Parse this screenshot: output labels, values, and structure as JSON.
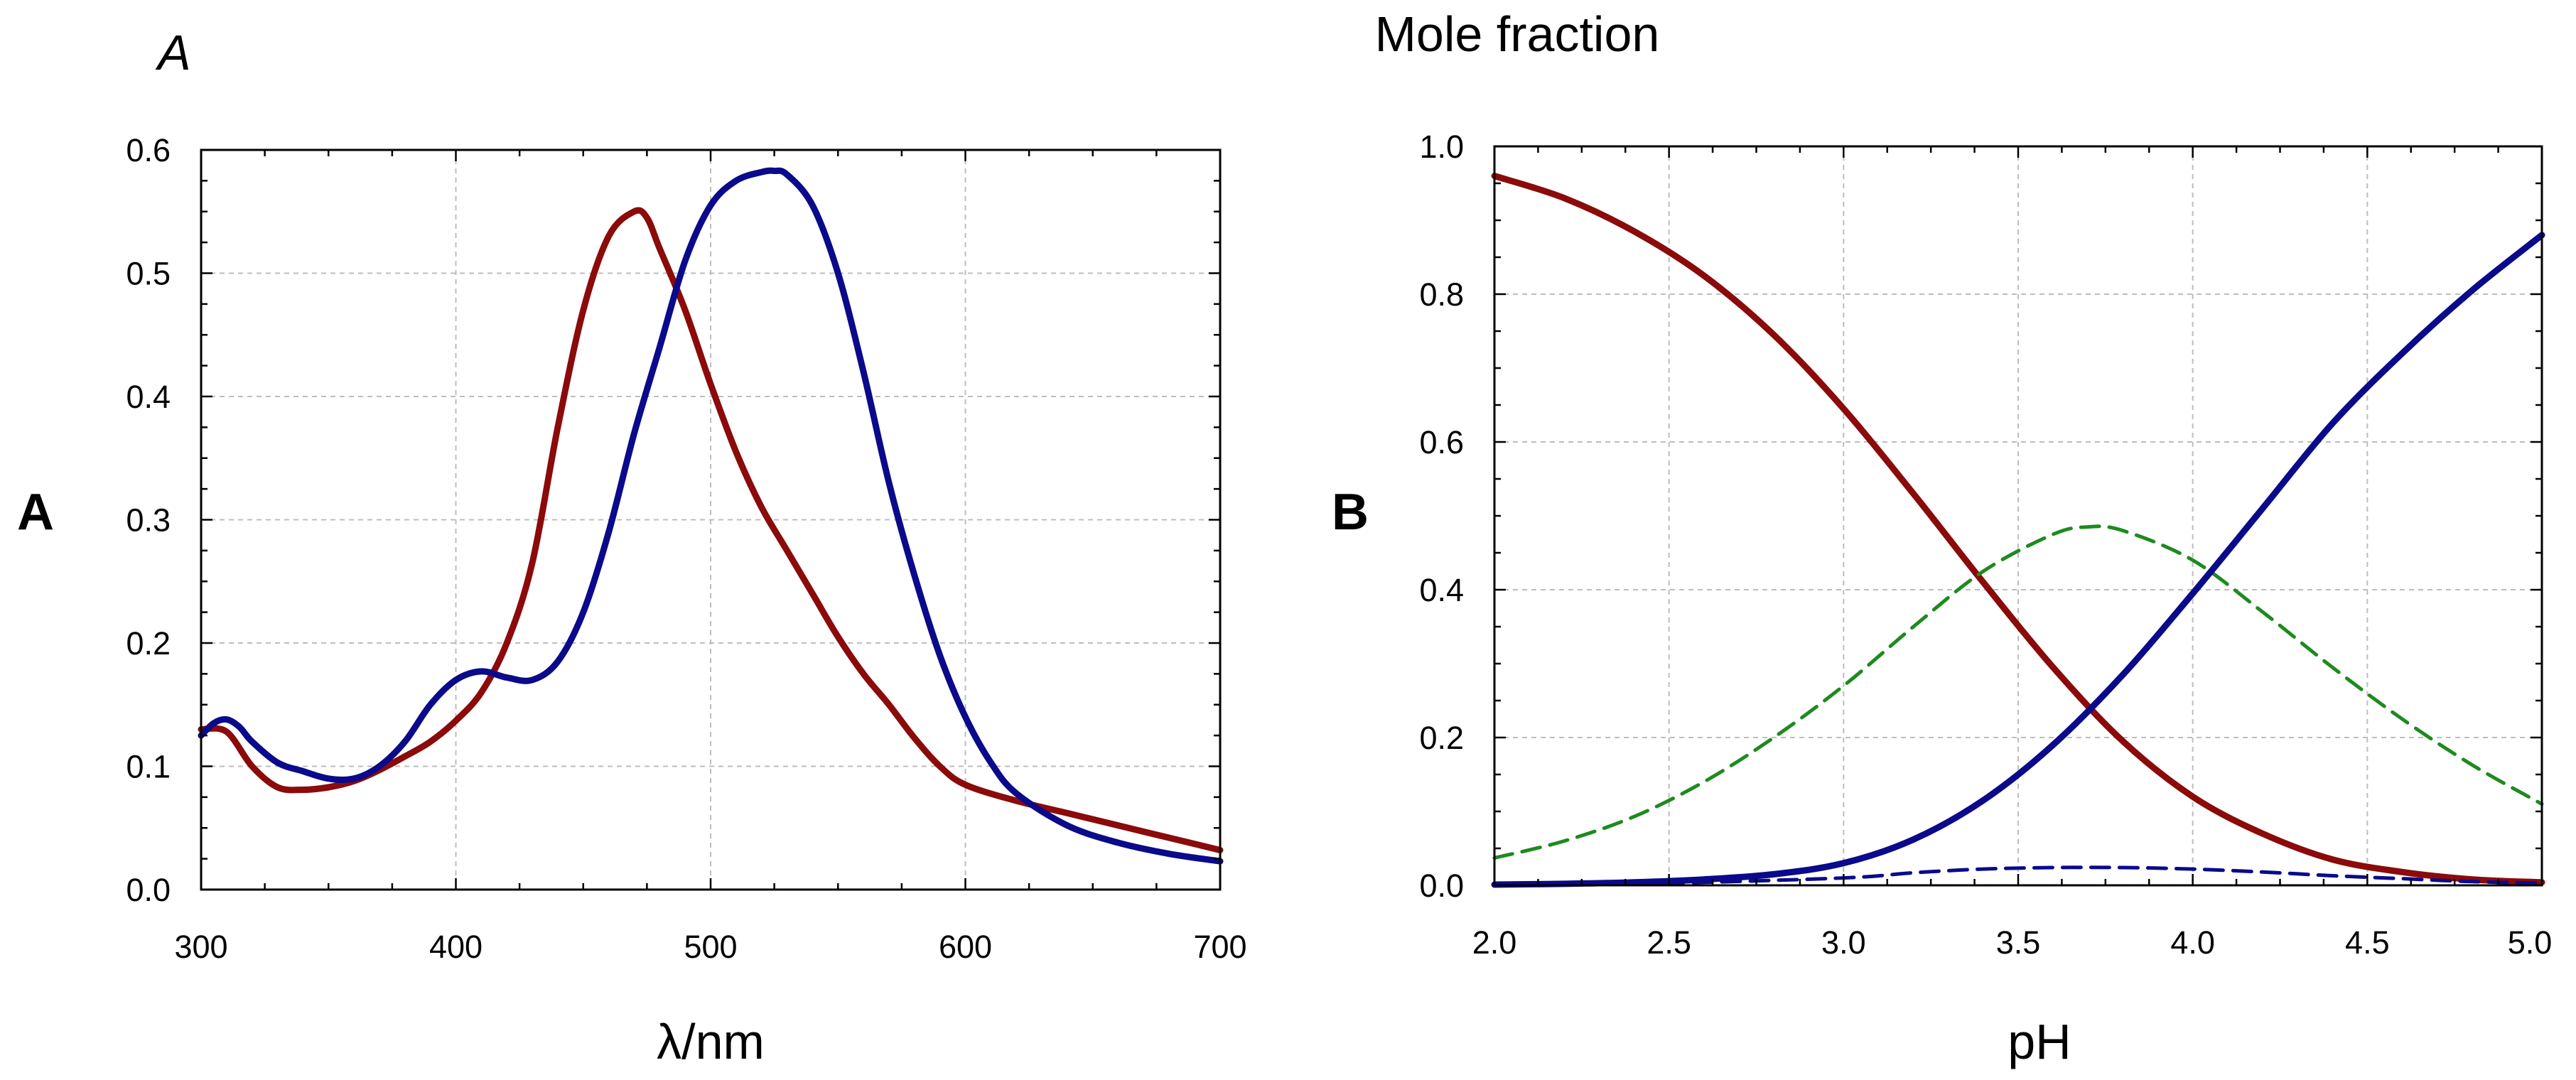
{
  "figure": {
    "panels": [
      "A",
      "B"
    ]
  },
  "chart_data": [
    {
      "type": "line",
      "panel_label": "A",
      "ylabel": "A",
      "xlabel": "λ/nm",
      "xlim": [
        300,
        700
      ],
      "ylim": [
        0,
        0.6
      ],
      "xticks": [
        300,
        400,
        500,
        600,
        700
      ],
      "yticks": [
        0.0,
        0.1,
        0.2,
        0.3,
        0.4,
        0.5,
        0.6
      ],
      "xtick_labels": [
        "300",
        "400",
        "500",
        "600",
        "700"
      ],
      "ytick_labels": [
        "0.0",
        "0.1",
        "0.2",
        "0.3",
        "0.4",
        "0.5",
        "0.6"
      ],
      "grid": true,
      "series": [
        {
          "name": "spectrum-red",
          "color": "#8B0A0A",
          "style": "solid",
          "x": [
            300,
            310,
            320,
            330,
            340,
            350,
            360,
            370,
            380,
            390,
            400,
            410,
            420,
            430,
            440,
            450,
            460,
            470,
            475,
            480,
            490,
            500,
            510,
            520,
            530,
            540,
            550,
            560,
            570,
            580,
            590,
            600,
            620,
            640,
            660,
            680,
            700
          ],
          "values": [
            0.13,
            0.128,
            0.1,
            0.083,
            0.081,
            0.083,
            0.088,
            0.097,
            0.108,
            0.12,
            0.137,
            0.16,
            0.2,
            0.265,
            0.375,
            0.47,
            0.53,
            0.55,
            0.545,
            0.52,
            0.47,
            0.41,
            0.355,
            0.31,
            0.275,
            0.24,
            0.205,
            0.175,
            0.15,
            0.123,
            0.1,
            0.085,
            0.072,
            0.062,
            0.052,
            0.042,
            0.032
          ]
        },
        {
          "name": "spectrum-blue",
          "color": "#0A0A8B",
          "style": "solid",
          "x": [
            300,
            305,
            310,
            315,
            320,
            330,
            340,
            350,
            360,
            370,
            380,
            390,
            400,
            410,
            420,
            430,
            440,
            450,
            460,
            470,
            480,
            490,
            500,
            510,
            520,
            525,
            530,
            540,
            550,
            560,
            570,
            580,
            590,
            600,
            610,
            620,
            640,
            660,
            680,
            700
          ],
          "values": [
            0.125,
            0.135,
            0.138,
            0.132,
            0.12,
            0.103,
            0.096,
            0.09,
            0.09,
            0.1,
            0.12,
            0.15,
            0.17,
            0.177,
            0.172,
            0.17,
            0.185,
            0.225,
            0.29,
            0.37,
            0.44,
            0.51,
            0.555,
            0.575,
            0.582,
            0.583,
            0.58,
            0.555,
            0.5,
            0.42,
            0.33,
            0.255,
            0.19,
            0.14,
            0.103,
            0.078,
            0.052,
            0.038,
            0.029,
            0.023
          ]
        }
      ]
    },
    {
      "type": "line",
      "panel_label": "B",
      "ylabel": "Mole fraction",
      "xlabel": "pH",
      "xlim": [
        2.0,
        5.0
      ],
      "ylim": [
        0,
        1.0
      ],
      "xticks": [
        2.0,
        2.5,
        3.0,
        3.5,
        4.0,
        4.5,
        5.0
      ],
      "yticks": [
        0.0,
        0.2,
        0.4,
        0.6,
        0.8,
        1.0
      ],
      "xtick_labels": [
        "2.0",
        "2.5",
        "3.0",
        "3.5",
        "4.0",
        "4.5",
        "5.0"
      ],
      "ytick_labels": [
        "0.0",
        "0.2",
        "0.4",
        "0.6",
        "0.8",
        "1.0"
      ],
      "grid": true,
      "series": [
        {
          "name": "fraction-red",
          "color": "#8B0A0A",
          "style": "solid",
          "x": [
            2.0,
            2.2,
            2.4,
            2.6,
            2.8,
            3.0,
            3.2,
            3.4,
            3.6,
            3.8,
            4.0,
            4.2,
            4.4,
            4.6,
            4.8,
            5.0
          ],
          "values": [
            0.96,
            0.93,
            0.885,
            0.825,
            0.745,
            0.645,
            0.53,
            0.41,
            0.295,
            0.195,
            0.12,
            0.07,
            0.035,
            0.018,
            0.008,
            0.004
          ]
        },
        {
          "name": "fraction-green",
          "color": "#1E8A1E",
          "style": "dashed",
          "x": [
            2.0,
            2.2,
            2.4,
            2.6,
            2.8,
            3.0,
            3.2,
            3.4,
            3.6,
            3.7,
            3.8,
            4.0,
            4.2,
            4.4,
            4.6,
            4.8,
            5.0
          ],
          "values": [
            0.037,
            0.06,
            0.093,
            0.14,
            0.2,
            0.27,
            0.35,
            0.425,
            0.475,
            0.485,
            0.48,
            0.44,
            0.37,
            0.295,
            0.225,
            0.163,
            0.11
          ]
        },
        {
          "name": "fraction-blue-small",
          "color": "#0A0A8B",
          "style": "dashed",
          "x": [
            2.0,
            2.5,
            3.0,
            3.2,
            3.4,
            3.6,
            3.8,
            4.0,
            4.2,
            4.4,
            4.6,
            4.8,
            5.0
          ],
          "values": [
            0.0,
            0.003,
            0.01,
            0.017,
            0.022,
            0.024,
            0.024,
            0.022,
            0.018,
            0.013,
            0.009,
            0.005,
            0.003
          ]
        },
        {
          "name": "fraction-blue",
          "color": "#0A0A8B",
          "style": "solid",
          "x": [
            2.0,
            2.2,
            2.4,
            2.6,
            2.8,
            3.0,
            3.2,
            3.4,
            3.6,
            3.8,
            4.0,
            4.2,
            4.4,
            4.6,
            4.8,
            5.0
          ],
          "values": [
            0.001,
            0.002,
            0.004,
            0.008,
            0.015,
            0.03,
            0.062,
            0.115,
            0.19,
            0.285,
            0.395,
            0.51,
            0.625,
            0.72,
            0.805,
            0.88
          ]
        }
      ]
    }
  ]
}
